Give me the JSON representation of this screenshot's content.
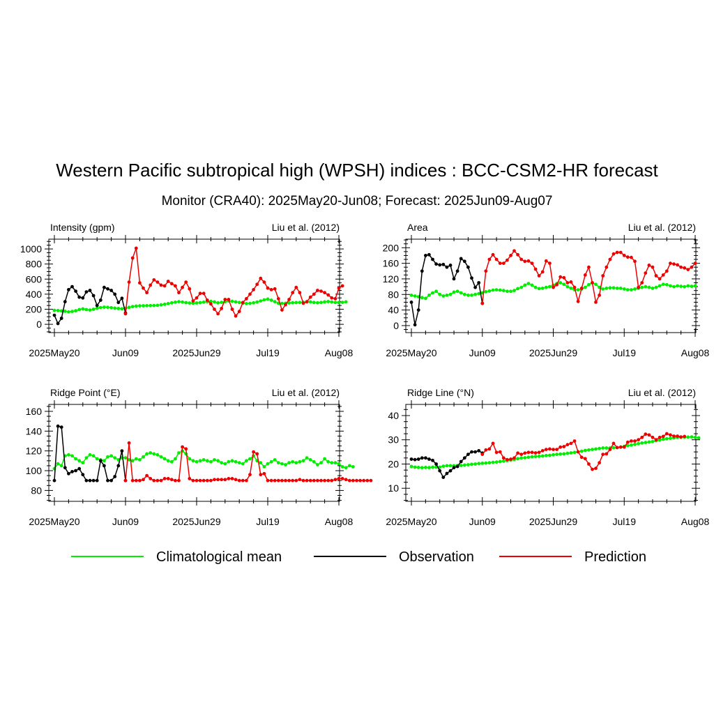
{
  "title": "Western Pacific subtropical high (WPSH) indices : BCC-CSM2-HR forecast",
  "subtitle": "Monitor (CRA40): 2025May20-Jun08; Forecast: 2025Jun09-Aug07",
  "x_tick_labels": [
    "2025May20",
    "Jun09",
    "2025Jun29",
    "Jul19",
    "Aug08"
  ],
  "colors": {
    "climatology": "#00ee00",
    "observation": "#000000",
    "prediction": "#ee0000"
  },
  "legend": {
    "climatology": "Climatological mean",
    "observation": "Observation",
    "prediction": "Prediction"
  },
  "chart_data": [
    {
      "type": "line",
      "title": "Intensity (gpm)",
      "source": "Liu et al. (2012)",
      "x_range": [
        "2025-05-20",
        "2025-08-08"
      ],
      "ylim": [
        -110,
        1130
      ],
      "yticks": [
        0,
        200,
        400,
        600,
        800,
        1000
      ],
      "series": [
        {
          "name": "Climatological mean",
          "start": "2025-05-20",
          "values": [
            185,
            182,
            178,
            172,
            165,
            170,
            180,
            195,
            205,
            195,
            190,
            200,
            212,
            222,
            228,
            225,
            220,
            215,
            210,
            206,
            212,
            225,
            235,
            242,
            245,
            246,
            247,
            248,
            250,
            252,
            258,
            266,
            275,
            285,
            293,
            300,
            295,
            288,
            282,
            280,
            283,
            288,
            294,
            300,
            305,
            298,
            285,
            292,
            300,
            310,
            305,
            298,
            290,
            280,
            275,
            278,
            285,
            295,
            310,
            325,
            335,
            320,
            300,
            280,
            278,
            280,
            283,
            286,
            289,
            290,
            293,
            296,
            298,
            290,
            285,
            290,
            298,
            302,
            296,
            290,
            288,
            292,
            298
          ]
        },
        {
          "name": "Observation",
          "start": "2025-05-20",
          "values": [
            120,
            10,
            80,
            300,
            460,
            500,
            440,
            360,
            350,
            430,
            450,
            380,
            250,
            320,
            490,
            470,
            450,
            400,
            290,
            345,
            150
          ]
        },
        {
          "name": "Prediction",
          "start": "2025-06-09",
          "values": [
            140,
            560,
            880,
            1010,
            550,
            480,
            420,
            520,
            590,
            560,
            520,
            510,
            570,
            540,
            510,
            420,
            490,
            560,
            470,
            310,
            350,
            410,
            410,
            320,
            270,
            200,
            140,
            210,
            330,
            330,
            200,
            110,
            170,
            290,
            340,
            400,
            460,
            530,
            610,
            560,
            480,
            460,
            470,
            340,
            190,
            260,
            330,
            420,
            490,
            420,
            280,
            300,
            360,
            400,
            450,
            440,
            420,
            390,
            350,
            340,
            480,
            510
          ]
        }
      ]
    },
    {
      "type": "line",
      "title": "Area",
      "source": "Liu et al. (2012)",
      "x_range": [
        "2025-05-20",
        "2025-08-08"
      ],
      "ylim": [
        -18,
        222
      ],
      "yticks": [
        0,
        40,
        80,
        120,
        160,
        200
      ],
      "series": [
        {
          "name": "Climatological mean",
          "start": "2025-05-20",
          "values": [
            78,
            76,
            74,
            72,
            70,
            78,
            84,
            88,
            80,
            76,
            78,
            80,
            86,
            88,
            84,
            80,
            78,
            78,
            80,
            82,
            84,
            87,
            89,
            91,
            92,
            91,
            90,
            88,
            88,
            90,
            95,
            98,
            104,
            108,
            104,
            98,
            95,
            96,
            98,
            100,
            104,
            108,
            110,
            106,
            100,
            96,
            92,
            92,
            94,
            98,
            105,
            110,
            106,
            98,
            94,
            96,
            97,
            97,
            96,
            96,
            94,
            92,
            92,
            94,
            96,
            98,
            100,
            98,
            96,
            98,
            102,
            106,
            105,
            102,
            100,
            102,
            101,
            100,
            102,
            101,
            102
          ]
        },
        {
          "name": "Observation",
          "start": "2025-05-20",
          "values": [
            60,
            2,
            40,
            140,
            180,
            182,
            170,
            158,
            156,
            157,
            150,
            155,
            120,
            140,
            172,
            165,
            150,
            122,
            98,
            110,
            57
          ]
        },
        {
          "name": "Prediction",
          "start": "2025-06-09",
          "values": [
            57,
            140,
            170,
            182,
            170,
            160,
            160,
            168,
            180,
            192,
            182,
            170,
            165,
            166,
            160,
            145,
            128,
            138,
            166,
            160,
            98,
            105,
            125,
            123,
            110,
            112,
            98,
            62,
            96,
            130,
            150,
            110,
            60,
            78,
            128,
            150,
            170,
            184,
            188,
            188,
            180,
            176,
            175,
            165,
            98,
            110,
            135,
            155,
            150,
            128,
            120,
            130,
            140,
            160,
            158,
            156,
            150,
            148,
            144,
            150,
            160
          ]
        }
      ]
    },
    {
      "type": "line",
      "title": "Ridge Point (°E)",
      "source": "Liu et al. (2012)",
      "x_range": [
        "2025-05-20",
        "2025-08-08"
      ],
      "ylim": [
        69,
        167
      ],
      "yticks": [
        80,
        100,
        120,
        140,
        160
      ],
      "series": [
        {
          "name": "Climatological mean",
          "start": "2025-05-20",
          "values": [
            102,
            107,
            105,
            115,
            116,
            115,
            112,
            110,
            108,
            113,
            116,
            115,
            112,
            111,
            110,
            114,
            115,
            113,
            111,
            113,
            113,
            111,
            110,
            112,
            111,
            114,
            117,
            118,
            117,
            116,
            114,
            112,
            110,
            109,
            112,
            118,
            120,
            117,
            112,
            110,
            109,
            110,
            111,
            110,
            109,
            111,
            110,
            108,
            107,
            109,
            110,
            109,
            108,
            107,
            110,
            112,
            115,
            110,
            108,
            104,
            107,
            109,
            111,
            108,
            107,
            106,
            108,
            109,
            108,
            109,
            110,
            113,
            111,
            109,
            106,
            108,
            112,
            109,
            108,
            108,
            107,
            104,
            103,
            105,
            104
          ]
        },
        {
          "name": "Observation",
          "start": "2025-05-20",
          "values": [
            90,
            145,
            144,
            103,
            97,
            99,
            100,
            102,
            96,
            90,
            90,
            90,
            90,
            110,
            105,
            90,
            90,
            94,
            105,
            120,
            90
          ]
        },
        {
          "name": "Prediction",
          "start": "2025-06-09",
          "values": [
            90,
            128,
            90,
            90,
            90,
            91,
            95,
            92,
            90,
            90,
            90,
            92,
            92,
            91,
            90,
            90,
            124,
            122,
            92,
            90,
            90,
            90,
            90,
            90,
            90,
            91,
            91,
            91,
            91,
            92,
            92,
            91,
            90,
            90,
            90,
            96,
            119,
            117,
            96,
            97,
            90,
            90,
            90,
            90,
            90,
            90,
            90,
            90,
            90,
            91,
            90,
            90,
            90,
            90,
            90,
            90,
            90,
            90,
            90,
            91,
            92,
            92,
            91,
            90,
            90,
            90,
            90,
            90,
            90,
            90
          ]
        }
      ]
    },
    {
      "type": "line",
      "title": "Ridge Line (°N)",
      "source": "Liu et al. (2012)",
      "x_range": [
        "2025-05-20",
        "2025-08-08"
      ],
      "ylim": [
        4.6,
        44.6
      ],
      "yticks": [
        10,
        20,
        30,
        40
      ],
      "series": [
        {
          "name": "Climatological mean",
          "start": "2025-05-20",
          "values": [
            19,
            18.7,
            18.6,
            18.5,
            18.6,
            18.5,
            18.7,
            18.7,
            18.7,
            19.1,
            19.3,
            19.3,
            19.3,
            19.4,
            19.4,
            19.6,
            19.7,
            19.9,
            20,
            20.2,
            20.3,
            20.4,
            20.5,
            20.7,
            20.8,
            21,
            21.2,
            21.4,
            21.6,
            21.9,
            22.2,
            22.5,
            22.6,
            22.8,
            23,
            23.1,
            23.2,
            23.3,
            23.5,
            23.6,
            23.8,
            24,
            24.1,
            24.2,
            24.4,
            24.6,
            24.8,
            25,
            25.3,
            25.6,
            25.8,
            26,
            26.2,
            26.4,
            26.6,
            26.6,
            26.6,
            26.7,
            26.8,
            27,
            27.3,
            27.6,
            27.8,
            28.1,
            28.4,
            28.7,
            28.9,
            29.1,
            29.3,
            29.6,
            29.9,
            30.2,
            30.4,
            30.6,
            30.8,
            31,
            31,
            31.1,
            31.1,
            31.2,
            31,
            30.8
          ]
        },
        {
          "name": "Observation",
          "start": "2025-05-20",
          "values": [
            22,
            21.8,
            22,
            22.5,
            22.5,
            22,
            21.5,
            20,
            17.2,
            14.5,
            16.1,
            17.2,
            18.5,
            19,
            21,
            22.5,
            24,
            25,
            25,
            25.5,
            24.5
          ]
        },
        {
          "name": "Prediction",
          "start": "2025-06-09",
          "values": [
            24,
            25.8,
            26.2,
            28.5,
            24.8,
            25,
            22.5,
            21.8,
            22,
            22.5,
            24.5,
            24,
            24.5,
            24.8,
            24.8,
            24.6,
            24.8,
            25.5,
            26,
            26.2,
            26,
            26,
            27,
            27.2,
            28,
            28.5,
            29.5,
            25,
            22.8,
            22.2,
            20,
            17.8,
            18.2,
            20.5,
            24,
            24.2,
            26,
            28.5,
            26.8,
            27,
            27,
            29,
            29.5,
            29.5,
            30,
            31,
            32.3,
            32,
            31,
            30,
            31,
            31.4,
            32.5,
            32,
            31.5,
            31.5,
            31.2,
            31.4
          ]
        }
      ]
    }
  ]
}
